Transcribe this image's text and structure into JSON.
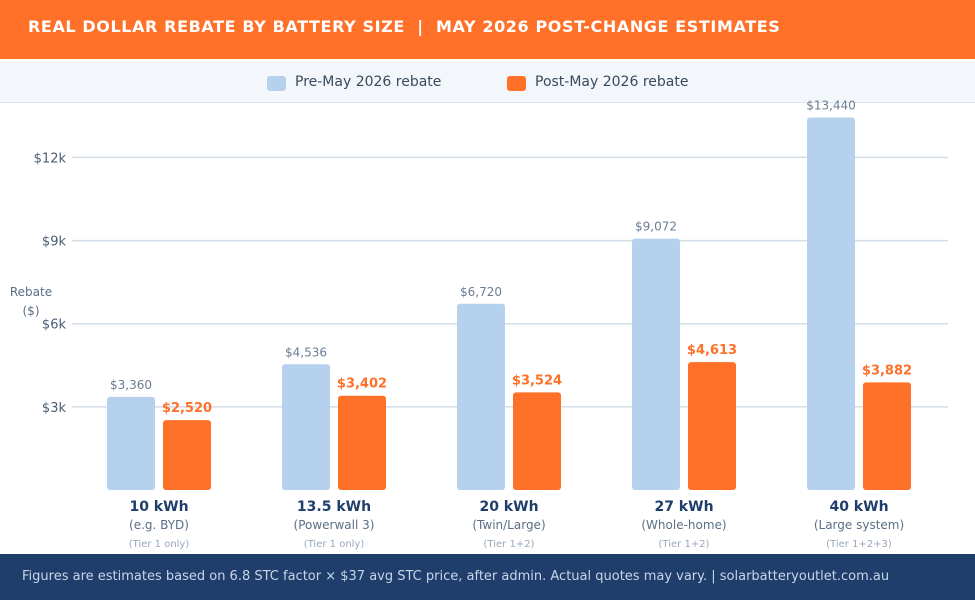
{
  "header": {
    "title": "REAL DOLLAR REBATE BY BATTERY SIZE  |  MAY 2026 POST-CHANGE ESTIMATES"
  },
  "legend": {
    "pre": {
      "label": "Pre-May 2026 rebate",
      "color": "#b5d1ee"
    },
    "post": {
      "label": "Post-May 2026 rebate",
      "color": "#ff7029"
    }
  },
  "chart_data": {
    "type": "bar",
    "ylabel": "Rebate ($)",
    "ylim": [
      0,
      14000
    ],
    "yticks": [
      3000,
      6000,
      9000,
      12000
    ],
    "ytick_labels": [
      "$3k",
      "$6k",
      "$9k",
      "$12k"
    ],
    "grid": true,
    "legend_position": "top",
    "categories": [
      {
        "label": "10 kWh",
        "sub": "(e.g. BYD)",
        "tier": "(Tier 1 only)"
      },
      {
        "label": "13.5 kWh",
        "sub": "(Powerwall 3)",
        "tier": "(Tier 1 only)"
      },
      {
        "label": "20 kWh",
        "sub": "(Twin/Large)",
        "tier": "(Tier 1+2)"
      },
      {
        "label": "27 kWh",
        "sub": "(Whole-home)",
        "tier": "(Tier 1+2)"
      },
      {
        "label": "40 kWh",
        "sub": "(Large system)",
        "tier": "(Tier 1+2+3)"
      }
    ],
    "series": [
      {
        "name": "Pre-May 2026 rebate",
        "values": [
          3360,
          4536,
          6720,
          9072,
          13440
        ],
        "data_labels": [
          "$3,360",
          "$4,536",
          "$6,720",
          "$9,072",
          "$13,440"
        ]
      },
      {
        "name": "Post-May 2026 rebate",
        "values": [
          2520,
          3402,
          3524,
          4613,
          3882
        ],
        "data_labels": [
          "$2,520",
          "$3,402",
          "$3,524",
          "$4,613",
          "$3,882"
        ]
      }
    ]
  },
  "footer": {
    "text": "Figures are estimates based on 6.8 STC factor × $37 avg STC price, after admin. Actual quotes may vary.  |  solarbatteryoutlet.com.au"
  }
}
